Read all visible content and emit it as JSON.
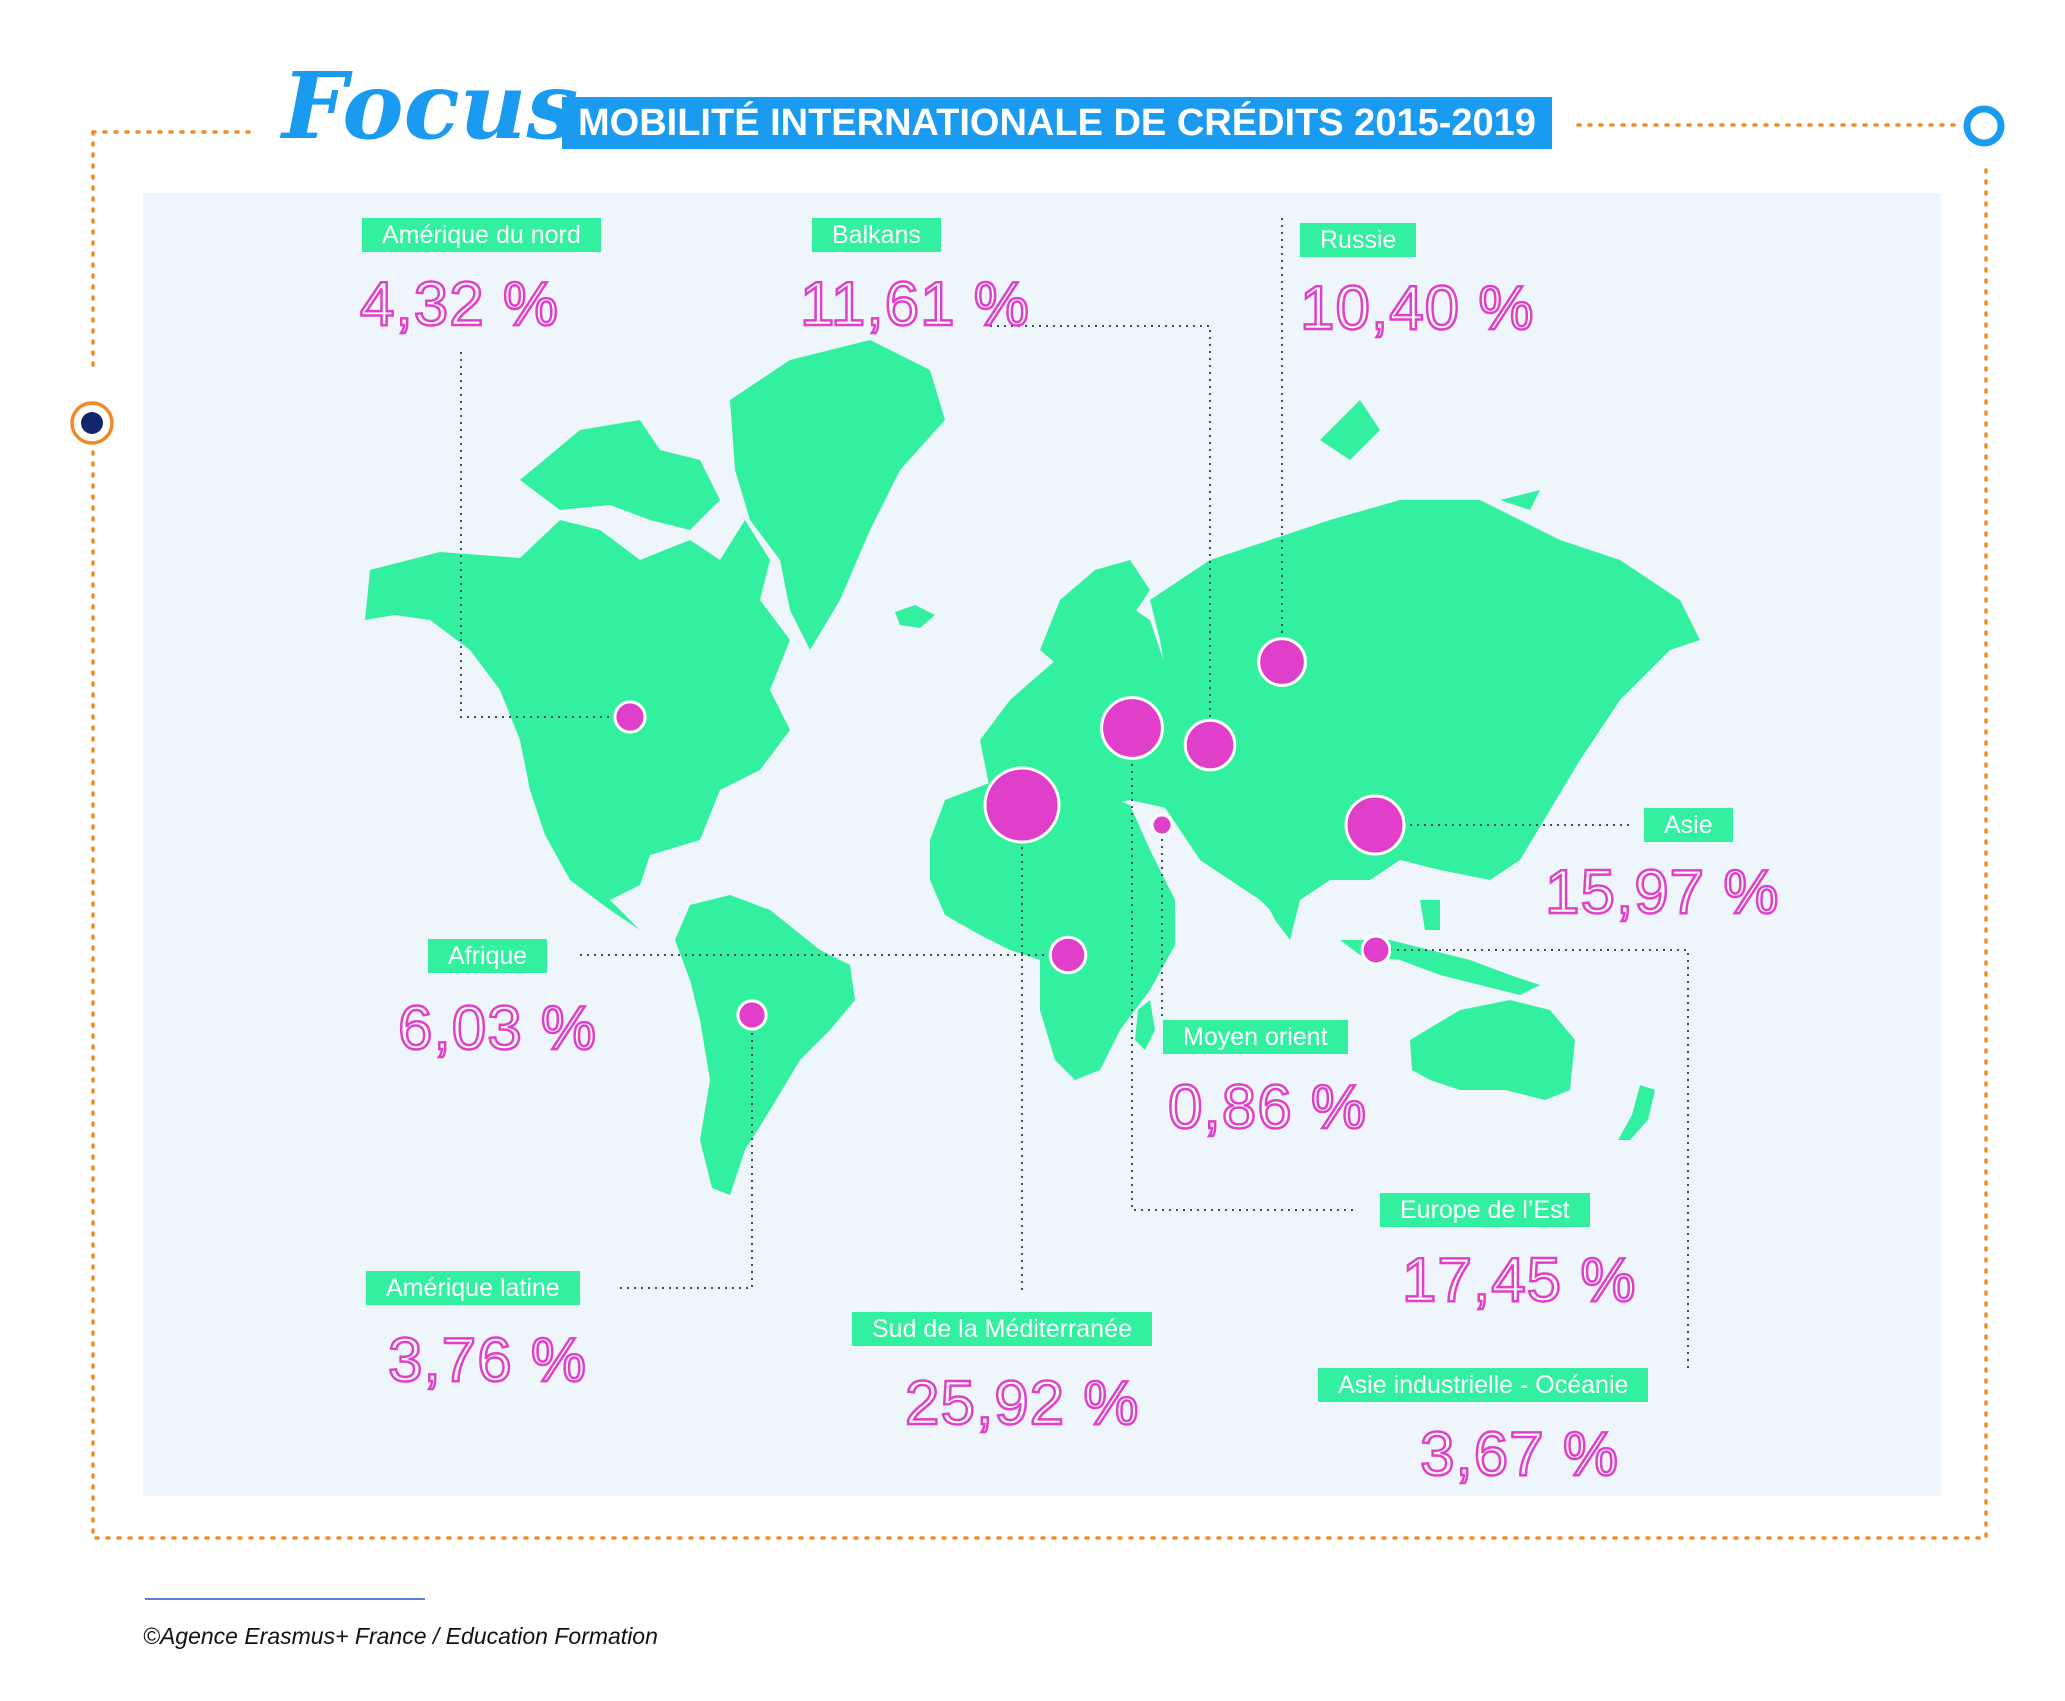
{
  "header": {
    "focus_word": "Focus",
    "title": "MOBILITÉ INTERNATIONALE DE CRÉDITS 2015-2019"
  },
  "colors": {
    "accent_blue": "#1a9bef",
    "frame_orange": "#f08a24",
    "land_green": "#33f0a0",
    "bubble_magenta": "#e040c9",
    "panel_bg": "#eef6fc",
    "dot_navy": "#12266e"
  },
  "regions": [
    {
      "id": "amerique-nord",
      "name": "Amérique du nord",
      "share_pct": "4,32 %",
      "value": 4.32
    },
    {
      "id": "balkans",
      "name": "Balkans",
      "share_pct": "11,61 %",
      "value": 11.61
    },
    {
      "id": "russie",
      "name": "Russie",
      "share_pct": "10,40 %",
      "value": 10.4
    },
    {
      "id": "asie",
      "name": "Asie",
      "share_pct": "15,97 %",
      "value": 15.97
    },
    {
      "id": "afrique",
      "name": "Afrique",
      "share_pct": "6,03 %",
      "value": 6.03
    },
    {
      "id": "moyen-orient",
      "name": "Moyen orient",
      "share_pct": "0,86 %",
      "value": 0.86
    },
    {
      "id": "europe-est",
      "name": "Europe de l’Est",
      "share_pct": "17,45 %",
      "value": 17.45
    },
    {
      "id": "amerique-latine",
      "name": "Amérique latine",
      "share_pct": "3,76 %",
      "value": 3.76
    },
    {
      "id": "sud-mediterranee",
      "name": "Sud de la Méditerranée",
      "share_pct": "25,92 %",
      "value": 25.92
    },
    {
      "id": "asie-oceanie",
      "name": "Asie industrielle - Océanie",
      "share_pct": "3,67 %",
      "value": 3.67
    }
  ],
  "footer": {
    "credit": "©Agence Erasmus+ France / Education Formation"
  }
}
